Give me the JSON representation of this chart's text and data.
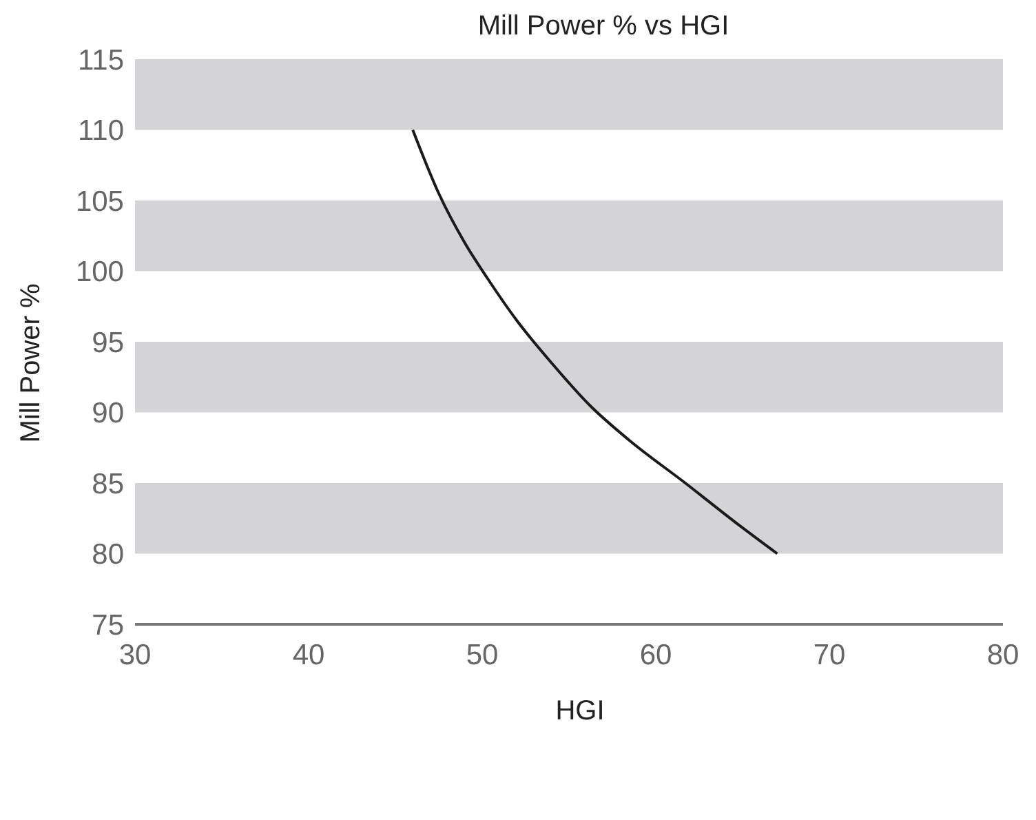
{
  "chart_data": {
    "type": "line",
    "title": "Mill Power % vs HGI",
    "xlabel": "HGI",
    "ylabel": "Mill Power %",
    "x": [
      46,
      47.5,
      49,
      50.3,
      52,
      54,
      56.2,
      58.5,
      61.7,
      64.5,
      67
    ],
    "series": [
      {
        "color": "#1a1a1a",
        "values": [
          110,
          105.5,
          102,
          99.5,
          96.5,
          93.5,
          90.5,
          88,
          85,
          82.3,
          80
        ]
      }
    ],
    "xlim": [
      30,
      80
    ],
    "xticks": [
      30,
      40,
      50,
      60,
      70,
      80
    ],
    "ylim": [
      75,
      115
    ],
    "yticks": [
      75,
      80,
      85,
      90,
      95,
      100,
      105,
      110,
      115
    ],
    "bands": [
      {
        "axis": "y",
        "from": 80,
        "to": 85,
        "color": "#d4d4d6"
      },
      {
        "axis": "y",
        "from": 90,
        "to": 95,
        "color": "#d4d4d6"
      },
      {
        "axis": "y",
        "from": 100,
        "to": 105,
        "color": "#d4d4d6"
      },
      {
        "axis": "y",
        "from": 110,
        "to": 115,
        "color": "#d4d4d6"
      }
    ],
    "grid": false,
    "legend": false,
    "marker": "none",
    "line_style": "solid"
  }
}
